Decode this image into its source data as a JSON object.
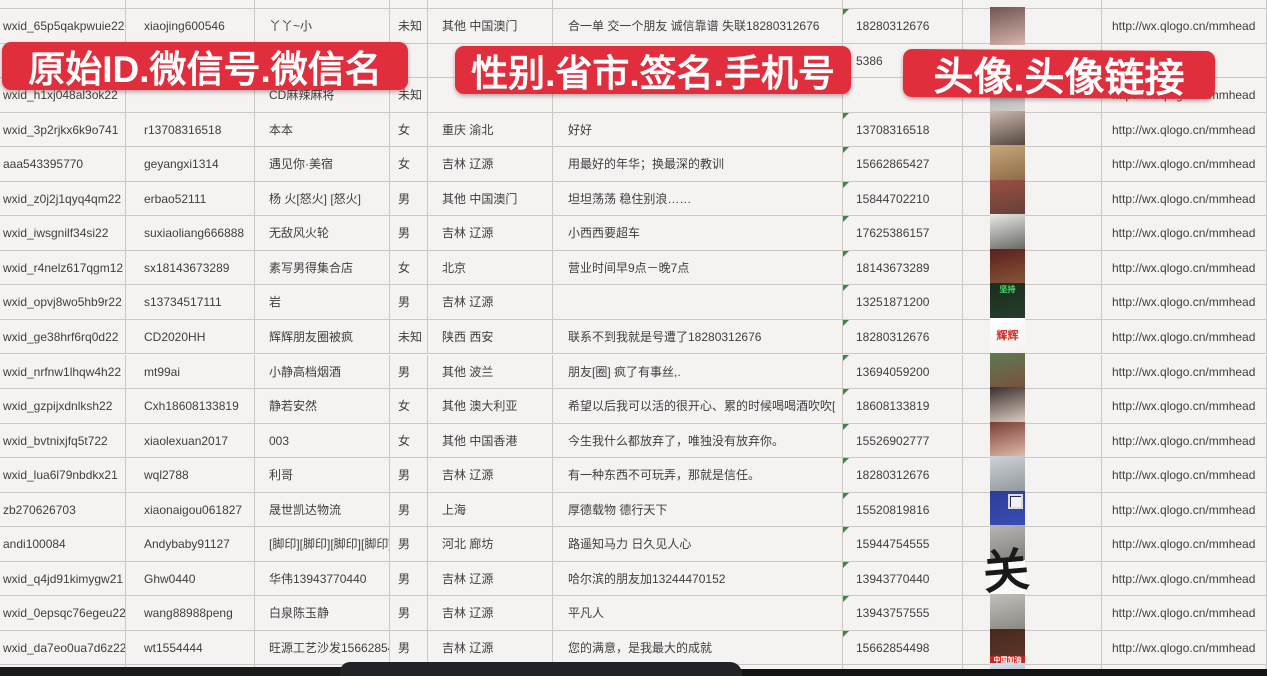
{
  "app": {
    "kind": "spreadsheet-screenshot"
  },
  "accent_color": "#e12e3d",
  "banners": [
    {
      "label": "原始ID.微信号.微信名"
    },
    {
      "label": "性别.省市.签名.手机号"
    },
    {
      "label": "头像.头像链接"
    }
  ],
  "columns": [
    {
      "key": "id",
      "title": "原始ID"
    },
    {
      "key": "wxid",
      "title": "微信号"
    },
    {
      "key": "name",
      "title": "微信名"
    },
    {
      "key": "gender",
      "title": "性别"
    },
    {
      "key": "region",
      "title": "省市"
    },
    {
      "key": "signature",
      "title": "签名"
    },
    {
      "key": "phone",
      "title": "手机号"
    },
    {
      "key": "avatar",
      "title": "头像"
    },
    {
      "key": "link",
      "title": "头像链接"
    }
  ],
  "link_text": "http://wx.qlogo.cn/mmhead",
  "rows": [
    {
      "id": "wxid_65p5qakpwuie22",
      "wxid": "xiaojing600546",
      "name": "丫丫~小",
      "gender": "未知",
      "region": "其他 中国澳门",
      "signature": "合一单 交一个朋友 诚信靠谱 失联18280312676",
      "phone": "18280312676",
      "link": "http://wx.qlogo.cn/mmhead",
      "avatar": {
        "desc": "girl-photo",
        "colors": [
          "#6e5450",
          "#d8b4ac"
        ]
      }
    },
    {
      "id": "",
      "wxid": "",
      "name": "",
      "gender": "",
      "region": "",
      "signature": "",
      "phone": "5386",
      "link": "",
      "avatar": null,
      "hidden_by_banner": true
    },
    {
      "id": "wxid_h1xj048al3ok22",
      "wxid": "",
      "name": "CD麻辣麻将",
      "gender": "未知",
      "region": "",
      "signature": "",
      "phone": "",
      "link": "http://wx.qlogo.cn/mmhead",
      "avatar": {
        "desc": "girl-photo",
        "colors": [
          "#9aa0a6",
          "#d7d3d0"
        ]
      }
    },
    {
      "id": "wxid_3p2rjkx6k9o741",
      "wxid": "r13708316518",
      "name": "本本",
      "gender": "女",
      "region": "重庆 渝北",
      "signature": "好好",
      "phone": "13708316518",
      "link": "http://wx.qlogo.cn/mmhead",
      "avatar": {
        "desc": "girl-long-hair-photo",
        "colors": [
          "#cbb9ad",
          "#4a3c36"
        ]
      }
    },
    {
      "id": "aaa543395770",
      "wxid": "geyangxi1314",
      "name": "遇见你·美宿",
      "gender": "女",
      "region": "吉林 辽源",
      "signature": "用最好的年华；换最深的教训",
      "phone": "15662865427",
      "link": "http://wx.qlogo.cn/mmhead",
      "avatar": {
        "desc": "warm-tone-photo",
        "colors": [
          "#c8a87c",
          "#8a6844"
        ]
      }
    },
    {
      "id": "wxid_z0j2j1qyq4qm22",
      "wxid": "erbao52111",
      "name": "杨 火[怒火] [怒火]",
      "gender": "男",
      "region": "其他 中国澳门",
      "signature": "坦坦荡荡 稳住别浪……",
      "phone": "15844702210",
      "link": "http://wx.qlogo.cn/mmhead",
      "avatar": {
        "desc": "group-photo",
        "colors": [
          "#9c4f42",
          "#5f4038"
        ]
      }
    },
    {
      "id": "wxid_iwsgnilf34si22",
      "wxid": "suxiaoliang666888",
      "name": "无敌风火轮",
      "gender": "男",
      "region": "吉林 辽源",
      "signature": "小西西要超车",
      "phone": "17625386157",
      "link": "http://wx.qlogo.cn/mmhead",
      "avatar": {
        "desc": "man-white-shirt-photo",
        "colors": [
          "#e9e9e7",
          "#60605c"
        ]
      }
    },
    {
      "id": "wxid_r4nelz617qgm12",
      "wxid": "sx18143673289",
      "name": "素写男得集合店",
      "gender": "女",
      "region": "北京",
      "signature": "营业时间早9点－晚7点",
      "phone": "18143673289",
      "link": "http://wx.qlogo.cn/mmhead",
      "avatar": {
        "desc": "bar-bottles-photo",
        "colors": [
          "#5a1f1c",
          "#8a5a3a"
        ]
      }
    },
    {
      "id": "wxid_opvj8wo5hb9r22",
      "wxid": "s13734517111",
      "name": "岩",
      "gender": "男",
      "region": "吉林 辽源",
      "signature": "",
      "phone": "13251871200",
      "link": "http://wx.qlogo.cn/mmhead",
      "avatar": {
        "desc": "dark-green-poster",
        "colors": [
          "#1c2b1f",
          "#24402b"
        ],
        "label": "坚持",
        "label_color": "#45e06a",
        "label_top": true
      }
    },
    {
      "id": "wxid_ge38hrf6rq0d22",
      "wxid": "CD2020HH",
      "name": "辉辉朋友圈被疯",
      "gender": "未知",
      "region": "陕西 西安",
      "signature": "联系不到我就是号遭了18280312676",
      "phone": "18280312676",
      "link": "http://wx.qlogo.cn/mmhead",
      "avatar": {
        "desc": "white-red-text",
        "colors": [
          "#ffffff",
          "#f4f0ee"
        ],
        "label": "辉辉",
        "label2": "!♥",
        "label_color": "#d2362e",
        "label_size": 11
      }
    },
    {
      "id": "wxid_nrfnw1lhqw4h22",
      "wxid": "mt99ai",
      "name": "小静高档烟酒",
      "gender": "男",
      "region": "其他 波兰",
      "signature": "朋友[圈] 疯了有事丝,.",
      "phone": "13694059200",
      "link": "http://wx.qlogo.cn/mmhead",
      "avatar": {
        "desc": "girl-sunglasses-photo",
        "colors": [
          "#5e7a52",
          "#7a4f3a"
        ]
      }
    },
    {
      "id": "wxid_gzpijxdnlksh22",
      "wxid": "Cxh18608133819",
      "name": "静若安然",
      "gender": "女",
      "region": "其他 澳大利亚",
      "signature": "希望以后我可以活的很开心、累的时候喝喝酒吹吹[",
      "phone": "18608133819",
      "link": "http://wx.qlogo.cn/mmhead",
      "avatar": {
        "desc": "girl-selfie-photo",
        "colors": [
          "#3a2e2c",
          "#e7d6c9"
        ]
      }
    },
    {
      "id": "wxid_bvtnixjfq5t722",
      "wxid": "xiaolexuan2017",
      "name": "003",
      "gender": "女",
      "region": "其他 中国香港",
      "signature": "今生我什么都放弃了，唯独没有放弃你。",
      "phone": "15526902777",
      "link": "http://wx.qlogo.cn/mmhead",
      "avatar": {
        "desc": "girl-selfie-photo",
        "colors": [
          "#7a3e35",
          "#e7c4b6"
        ]
      }
    },
    {
      "id": "wxid_lua6l79nbdkx21",
      "wxid": "wql2788",
      "name": "利哥",
      "gender": "男",
      "region": "吉林 辽源",
      "signature": "有一种东西不可玩弄，那就是信任。",
      "phone": "18280312676",
      "link": "http://wx.qlogo.cn/mmhead",
      "avatar": {
        "desc": "person-hat-light-photo",
        "colors": [
          "#cfd3d6",
          "#8f9498"
        ]
      }
    },
    {
      "id": "zb270626703",
      "wxid": "xiaonaigou061827",
      "name": "晟世凯达物流",
      "gender": "男",
      "region": "上海",
      "signature": "厚德载物 德行天下",
      "phone": "15520819816",
      "link": "http://wx.qlogo.cn/mmhead",
      "avatar": {
        "desc": "blue-poster-qr-code",
        "colors": [
          "#2b3d9b",
          "#3a4fb5"
        ],
        "qr": true
      }
    },
    {
      "id": "andi100084",
      "wxid": "Andybaby91127",
      "name": "[脚印][脚印][脚印][脚印]",
      "gender": "男",
      "region": "河北 廊坊",
      "signature": "路遥知马力 日久见人心",
      "phone": "15944754555",
      "link": "http://wx.qlogo.cn/mmhead",
      "avatar": {
        "desc": "street-scene-photo",
        "colors": [
          "#b8b6b2",
          "#7e7c78"
        ]
      }
    },
    {
      "id": "wxid_q4jd91kimygw21",
      "wxid": "Ghw0440",
      "name": "华伟13943770440",
      "gender": "男",
      "region": "吉林 辽源",
      "signature": "哈尔滨的朋友加13244470152",
      "phone": "13943770440",
      "link": "http://wx.qlogo.cn/mmhead",
      "avatar": {
        "desc": "calligraphy-guan",
        "colors": [
          "#ffffff",
          "#fbf9f7"
        ],
        "label": "关",
        "label_color": "#191919",
        "label_size": 46,
        "big": true
      }
    },
    {
      "id": "wxid_0epsqc76egeu22",
      "wxid": "wang88988peng",
      "name": "白泉陈玉静",
      "gender": "男",
      "region": "吉林 辽源",
      "signature": "平凡人",
      "phone": "13943757555",
      "link": "http://wx.qlogo.cn/mmhead",
      "avatar": {
        "desc": "person-white-clothes-photo",
        "colors": [
          "#c2c0bc",
          "#87857f"
        ]
      }
    },
    {
      "id": "wxid_da7eo0ua7d6z22",
      "wxid": "wt1554444",
      "name": "旺源工艺沙发15662854",
      "gender": "男",
      "region": "吉林 辽源",
      "signature": "您的满意，是我最大的成就",
      "phone": "15662854498",
      "link": "http://wx.qlogo.cn/mmhead",
      "avatar": {
        "desc": "china-jiayou-photo",
        "colors": [
          "#46291f",
          "#63382a"
        ],
        "strip": "中国加油"
      }
    },
    {
      "id": "",
      "wxid": "",
      "name": "",
      "gender": "",
      "region": "",
      "signature": "",
      "phone": "",
      "link": "",
      "avatar": {
        "desc": "partial-photo-bottom",
        "colors": [
          "#dde6ee",
          "#6f94c0"
        ]
      },
      "partial": true
    }
  ]
}
